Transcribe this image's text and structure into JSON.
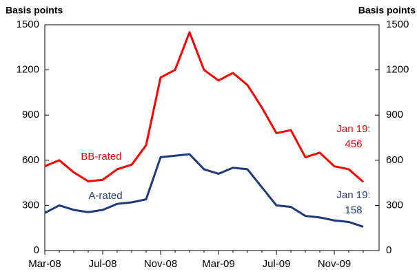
{
  "chart_data": {
    "type": "line",
    "y_label": "Basis points",
    "y2_label": "Basis points",
    "categories": [
      "Mar-08",
      null,
      null,
      null,
      "Jul-08",
      null,
      null,
      null,
      "Nov-08",
      null,
      null,
      null,
      "Mar-09",
      null,
      null,
      null,
      "Jul-09",
      null,
      null,
      null,
      "Nov-09",
      null,
      null
    ],
    "series": [
      {
        "name": "BB-rated",
        "color": "#ff0000",
        "values": [
          560,
          600,
          520,
          460,
          470,
          540,
          570,
          700,
          1150,
          1200,
          1450,
          1200,
          1130,
          1180,
          1100,
          950,
          780,
          800,
          620,
          650,
          560,
          540,
          456
        ]
      },
      {
        "name": "A-rated",
        "color": "#1f3a7a",
        "values": [
          250,
          300,
          270,
          255,
          270,
          310,
          320,
          340,
          620,
          630,
          640,
          540,
          510,
          550,
          540,
          420,
          300,
          290,
          230,
          220,
          200,
          190,
          158
        ]
      }
    ],
    "annotations": [
      "Jan 19:",
      "456",
      "Jan 19:",
      "158"
    ],
    "ylim": [
      0,
      1500
    ],
    "yticks": [
      0,
      300,
      600,
      900,
      1200,
      1500
    ],
    "y2lim": [
      0,
      1500
    ],
    "y2ticks": [
      0,
      300,
      600,
      900,
      1200,
      1500
    ]
  }
}
